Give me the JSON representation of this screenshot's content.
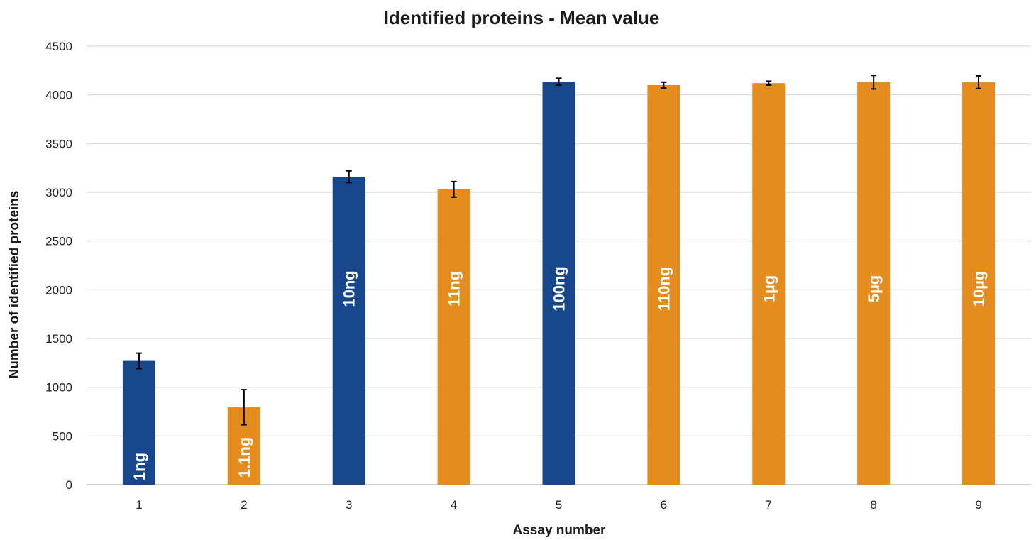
{
  "chart_data": {
    "type": "bar",
    "title": "Identified proteins - Mean value",
    "xlabel": "Assay number",
    "ylabel": "Number of identified proteins",
    "ylim": [
      0,
      4500
    ],
    "yticks": [
      0,
      500,
      1000,
      1500,
      2000,
      2500,
      3000,
      3500,
      4000,
      4500
    ],
    "grid": true,
    "categories": [
      "1",
      "2",
      "3",
      "4",
      "5",
      "6",
      "7",
      "8",
      "9"
    ],
    "values": [
      1270,
      795,
      3160,
      3030,
      4135,
      4100,
      4120,
      4130,
      4130
    ],
    "errors": [
      80,
      180,
      60,
      80,
      35,
      30,
      20,
      70,
      65
    ],
    "bar_labels": [
      "1ng",
      "1.1ng",
      "10ng",
      "11ng",
      "100ng",
      "110ng",
      "1µg",
      "5µg",
      "10µg"
    ],
    "bar_colors": [
      "#17468a",
      "#e48c1e",
      "#17468a",
      "#e48c1e",
      "#17468a",
      "#e48c1e",
      "#e48c1e",
      "#e48c1e",
      "#e48c1e"
    ]
  }
}
